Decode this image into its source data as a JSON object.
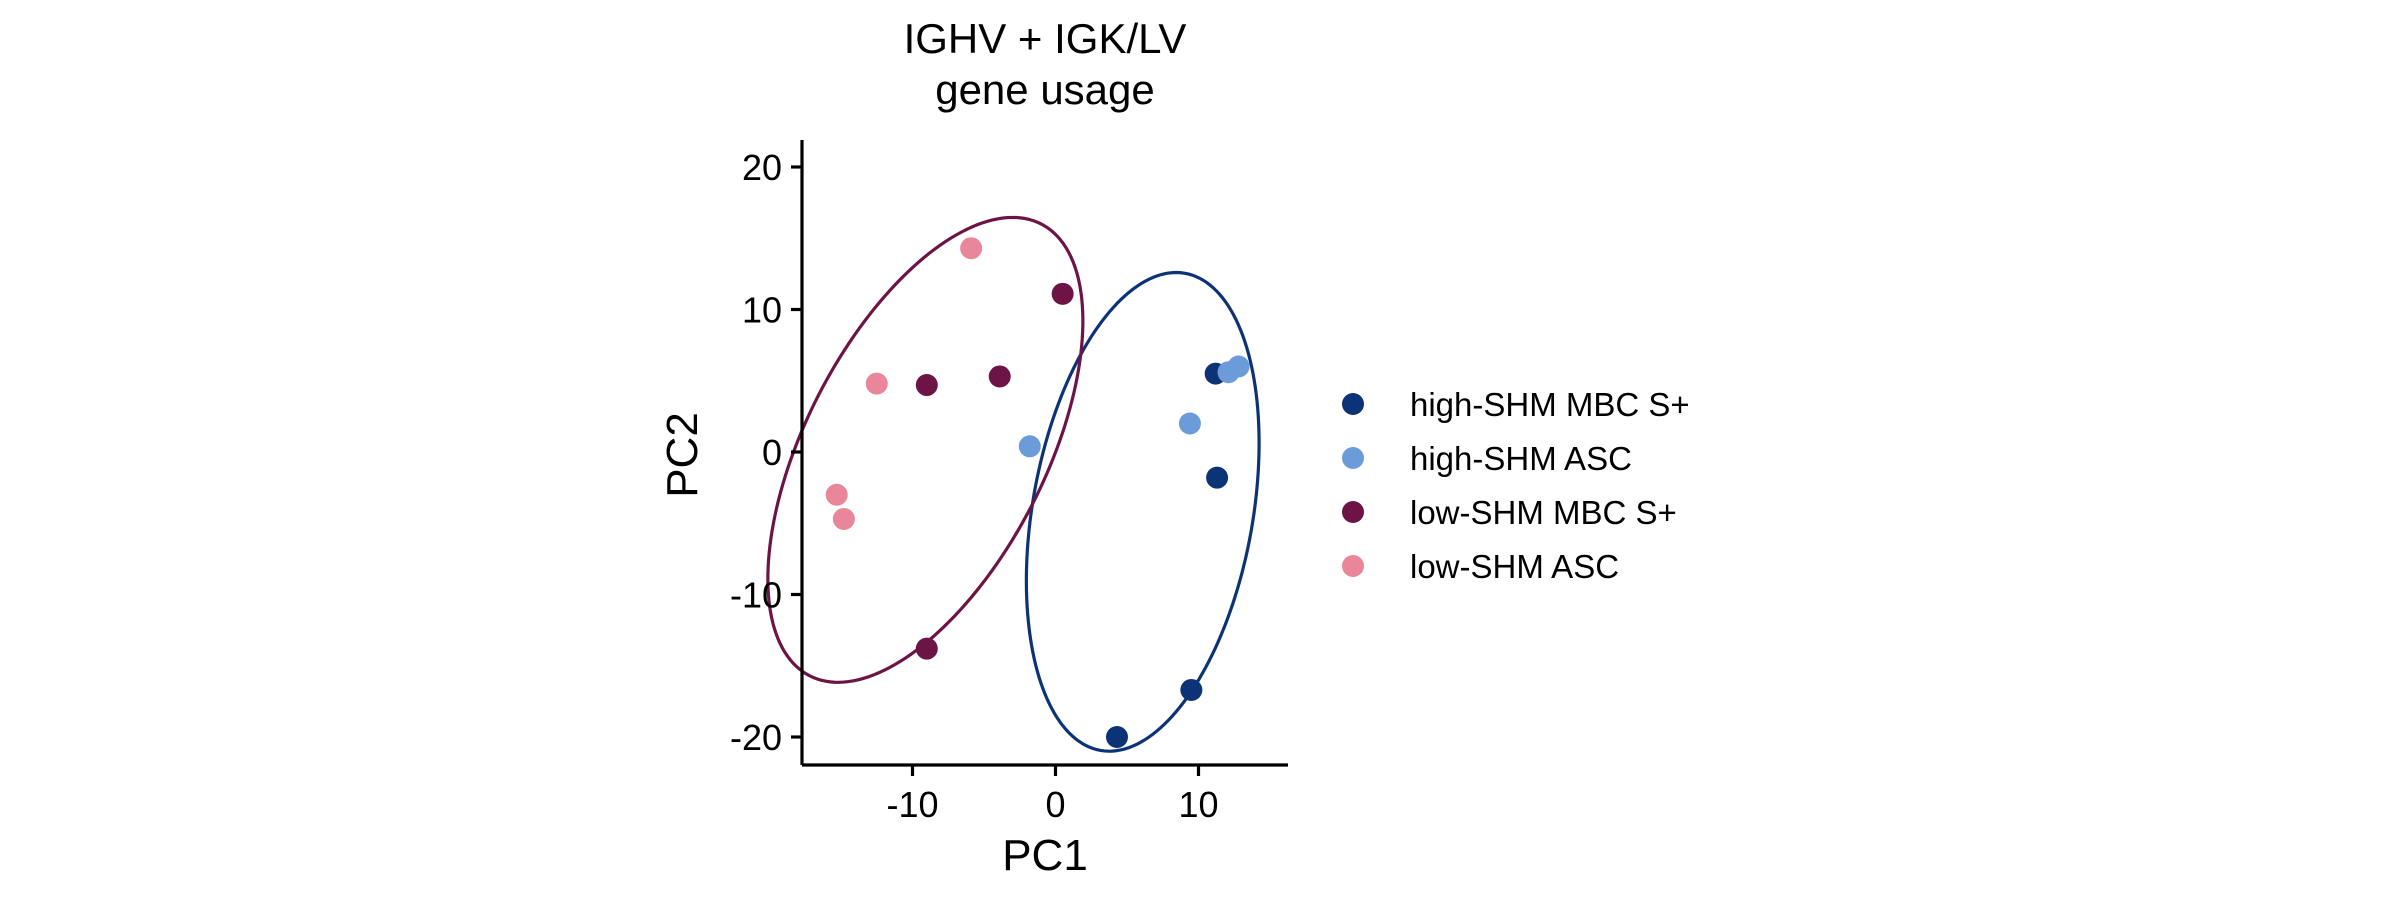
{
  "chart_data": {
    "type": "scatter",
    "title": [
      "IGHV + IGK/LV",
      "gene usage"
    ],
    "xlabel": "PC1",
    "ylabel": "PC2",
    "xlim": [
      -18,
      16.5
    ],
    "ylim": [
      -22,
      22
    ],
    "xticks": [
      -10,
      0,
      10
    ],
    "yticks": [
      -20,
      -10,
      0,
      10,
      20
    ],
    "grid": false,
    "legend_position": "right",
    "series": [
      {
        "name": "high-SHM MBC S+",
        "color": "#0d3377",
        "points": [
          {
            "x": 11.2,
            "y": 5.5
          },
          {
            "x": 11.3,
            "y": -1.8
          },
          {
            "x": 9.5,
            "y": -16.7
          },
          {
            "x": 4.3,
            "y": -20
          }
        ]
      },
      {
        "name": "high-SHM ASC",
        "color": "#6c9bd9",
        "points": [
          {
            "x": -1.8,
            "y": 0.4
          },
          {
            "x": 9.4,
            "y": 2.0
          },
          {
            "x": 12.1,
            "y": 5.6
          },
          {
            "x": 12.8,
            "y": 6.0
          }
        ]
      },
      {
        "name": "low-SHM MBC S+",
        "color": "#6d1447",
        "points": [
          {
            "x": 0.5,
            "y": 11.1
          },
          {
            "x": -3.9,
            "y": 5.3
          },
          {
            "x": -9.0,
            "y": 4.7
          },
          {
            "x": -9.0,
            "y": -13.8
          }
        ]
      },
      {
        "name": "low-SHM ASC",
        "color": "#ea8699",
        "points": [
          {
            "x": -5.9,
            "y": 14.3
          },
          {
            "x": -12.5,
            "y": 4.8
          },
          {
            "x": -15.3,
            "y": -3.0
          },
          {
            "x": -14.8,
            "y": -4.7
          }
        ]
      }
    ],
    "ellipses": [
      {
        "series": "high-SHM MBC S+",
        "color": "#0d3377",
        "cx": 6.1,
        "cy": -4.2,
        "rx": 17.0,
        "ry": 7.7,
        "angle_deg": 80
      },
      {
        "series": "low-SHM MBC S+",
        "color": "#6d1447",
        "cx": -9.1,
        "cy": 0.15,
        "rx": 17.8,
        "ry": 8.4,
        "angle_deg": 63
      }
    ]
  }
}
